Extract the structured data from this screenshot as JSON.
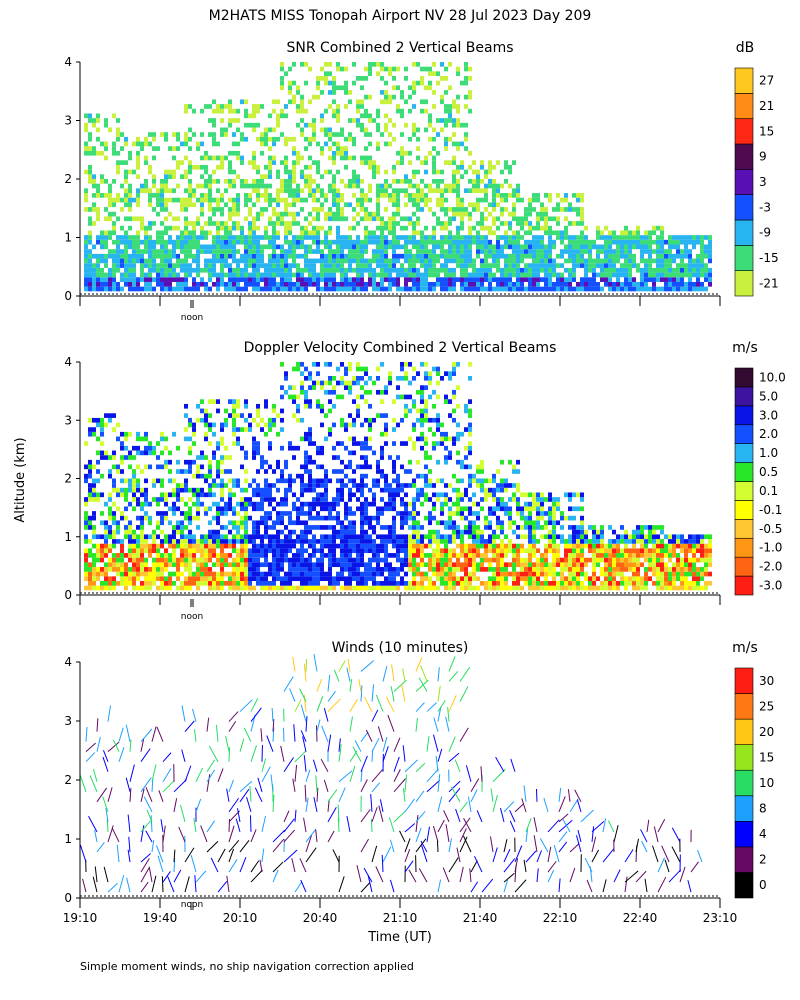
{
  "page": {
    "title": "M2HATS MISS Tonopah Airport NV  28 Jul 2023 Day 209",
    "ylabel": "Altitude (km)",
    "xlabel": "Time (UT)",
    "footnote": "Simple moment winds, no ship navigation correction applied",
    "noon_label": "noon"
  },
  "chart_data": [
    {
      "type": "heatmap",
      "title": "SNR Combined 2 Vertical Beams",
      "ylim": [
        0,
        4
      ],
      "yticks": [
        "0",
        "1",
        "2",
        "3",
        "4"
      ],
      "xlim": [
        "19:10",
        "23:10"
      ],
      "colorbar": {
        "unit": "dB",
        "labels": [
          "-21",
          "-15",
          "-9",
          "-3",
          "3",
          "9",
          "15",
          "21",
          "27"
        ],
        "colors": [
          "#c8f03c",
          "#3cdc78",
          "#28b4f0",
          "#1450ff",
          "#5a0fb4",
          "#500a50",
          "#ff2814",
          "#ff8c14",
          "#ffc81e"
        ]
      }
    },
    {
      "type": "heatmap",
      "title": "Doppler Velocity Combined 2 Vertical Beams",
      "ylim": [
        0,
        4
      ],
      "yticks": [
        "0",
        "1",
        "2",
        "3",
        "4"
      ],
      "xlim": [
        "19:10",
        "23:10"
      ],
      "colorbar": {
        "unit": "m/s",
        "labels": [
          "-3.0",
          "-2.0",
          "-1.0",
          "-0.5",
          "-0.1",
          "0.1",
          "0.5",
          "1.0",
          "2.0",
          "3.0",
          "5.0",
          "10.0"
        ],
        "colors": [
          "#ff1e14",
          "#ff6414",
          "#ff9614",
          "#ffc832",
          "#ffff00",
          "#d2ff32",
          "#28e628",
          "#28b4f0",
          "#1450ff",
          "#0a14e6",
          "#3c14a0",
          "#320a32"
        ]
      }
    },
    {
      "type": "scatter",
      "title": "Winds (10 minutes)",
      "ylim": [
        0,
        4
      ],
      "yticks": [
        "0",
        "1",
        "2",
        "3",
        "4"
      ],
      "xlim": [
        "19:10",
        "23:10"
      ],
      "xticks": [
        "19:10",
        "19:40",
        "20:10",
        "20:40",
        "21:10",
        "21:40",
        "22:10",
        "22:40",
        "23:10"
      ],
      "colorbar": {
        "unit": "m/s",
        "labels": [
          "0",
          "2",
          "4",
          "8",
          "10",
          "15",
          "20",
          "25",
          "30"
        ],
        "colors": [
          "#000000",
          "#640a64",
          "#0000ff",
          "#1ea0ff",
          "#28dc64",
          "#96e61e",
          "#ffc814",
          "#ff7814",
          "#ff1e14"
        ]
      }
    }
  ]
}
